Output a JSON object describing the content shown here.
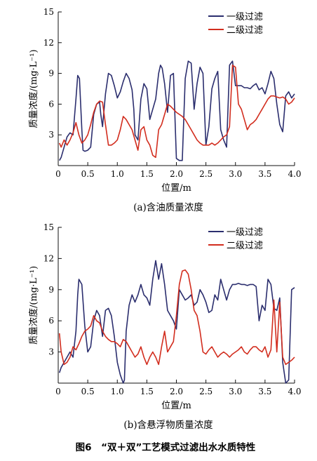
{
  "colors": {
    "series1": "#2b2e6e",
    "series2": "#d22d1e",
    "axis": "#111111"
  },
  "figure_caption": "图6　“双＋双”工艺模式过滤出水水质特性",
  "chart_data": [
    {
      "type": "line",
      "caption": "(a)含油质量浓度",
      "xlabel": "位置/m",
      "ylabel": "质量浓度/(mg·L⁻¹)",
      "xlim": [
        0,
        4.0
      ],
      "ylim": [
        0,
        15
      ],
      "xticks": [
        "0",
        "0.5",
        "1.0",
        "1.5",
        "2.0",
        "2.5",
        "3.0",
        "3.5",
        "4.0"
      ],
      "yticks": [
        "3",
        "6",
        "9",
        "12",
        "15"
      ],
      "legend_position": "top-right",
      "series": [
        {
          "name": "一级过滤",
          "x": [
            0.02,
            0.05,
            0.1,
            0.15,
            0.2,
            0.25,
            0.3,
            0.33,
            0.36,
            0.4,
            0.42,
            0.45,
            0.5,
            0.55,
            0.6,
            0.65,
            0.7,
            0.72,
            0.75,
            0.8,
            0.85,
            0.9,
            0.95,
            1.0,
            1.05,
            1.1,
            1.15,
            1.2,
            1.25,
            1.28,
            1.3,
            1.35,
            1.4,
            1.45,
            1.5,
            1.55,
            1.6,
            1.65,
            1.7,
            1.73,
            1.76,
            1.8,
            1.85,
            1.9,
            1.95,
            2.0,
            2.05,
            2.1,
            2.15,
            2.2,
            2.25,
            2.3,
            2.35,
            2.4,
            2.45,
            2.5,
            2.55,
            2.6,
            2.65,
            2.7,
            2.75,
            2.8,
            2.85,
            2.9,
            2.95,
            3.0,
            3.05,
            3.1,
            3.15,
            3.2,
            3.25,
            3.3,
            3.35,
            3.4,
            3.45,
            3.5,
            3.55,
            3.6,
            3.65,
            3.7,
            3.75,
            3.8,
            3.85,
            3.9,
            3.95,
            4.0
          ],
          "values": [
            0.5,
            0.8,
            1.8,
            2.8,
            3.2,
            3.0,
            6.5,
            8.8,
            8.5,
            3.5,
            1.5,
            1.4,
            1.5,
            1.8,
            5.0,
            6.0,
            6.2,
            5.0,
            3.8,
            7.0,
            9.0,
            8.8,
            7.8,
            6.6,
            7.2,
            8.2,
            9.0,
            8.5,
            7.4,
            5.5,
            3.0,
            2.5,
            6.5,
            8.0,
            7.5,
            4.5,
            5.5,
            6.5,
            9.0,
            9.8,
            9.5,
            8.0,
            5.2,
            8.8,
            9.0,
            0.7,
            0.5,
            0.5,
            8.5,
            10.2,
            10.0,
            5.5,
            8.0,
            9.6,
            9.0,
            2.0,
            3.8,
            7.5,
            8.5,
            9.2,
            3.5,
            2.5,
            1.8,
            9.8,
            10.2,
            7.8,
            7.8,
            7.8,
            7.6,
            7.6,
            7.5,
            7.8,
            8.0,
            7.4,
            7.6,
            7.0,
            8.0,
            9.2,
            8.5,
            6.0,
            4.0,
            3.3,
            6.8,
            7.2,
            6.6,
            7.0
          ]
        },
        {
          "name": "二级过滤",
          "x": [
            0.02,
            0.05,
            0.1,
            0.15,
            0.2,
            0.25,
            0.3,
            0.35,
            0.4,
            0.45,
            0.5,
            0.55,
            0.6,
            0.65,
            0.7,
            0.75,
            0.8,
            0.85,
            0.9,
            0.95,
            1.0,
            1.05,
            1.1,
            1.15,
            1.2,
            1.25,
            1.3,
            1.35,
            1.4,
            1.45,
            1.5,
            1.55,
            1.6,
            1.65,
            1.7,
            1.75,
            1.8,
            1.85,
            1.9,
            1.95,
            2.0,
            2.05,
            2.1,
            2.15,
            2.2,
            2.25,
            2.3,
            2.35,
            2.4,
            2.45,
            2.5,
            2.55,
            2.6,
            2.65,
            2.7,
            2.75,
            2.8,
            2.85,
            2.9,
            2.95,
            3.0,
            3.05,
            3.1,
            3.15,
            3.2,
            3.25,
            3.3,
            3.35,
            3.4,
            3.45,
            3.5,
            3.55,
            3.6,
            3.65,
            3.7,
            3.75,
            3.8,
            3.85,
            3.9,
            3.95,
            4.0
          ],
          "values": [
            2.2,
            1.8,
            2.5,
            2.0,
            2.5,
            3.2,
            4.2,
            3.0,
            2.2,
            2.5,
            3.0,
            4.0,
            5.2,
            6.0,
            6.3,
            6.2,
            4.0,
            2.0,
            2.0,
            2.2,
            2.5,
            3.5,
            4.8,
            4.5,
            4.0,
            3.5,
            2.5,
            1.5,
            3.5,
            3.8,
            2.5,
            2.0,
            1.0,
            0.8,
            3.5,
            4.0,
            5.0,
            6.0,
            5.8,
            5.5,
            5.2,
            5.0,
            4.8,
            4.5,
            4.0,
            3.5,
            3.0,
            2.5,
            2.2,
            2.0,
            2.0,
            2.0,
            2.2,
            2.0,
            2.2,
            2.5,
            2.8,
            3.0,
            3.8,
            9.8,
            9.6,
            6.0,
            5.5,
            4.5,
            3.5,
            4.0,
            4.2,
            4.5,
            5.0,
            5.5,
            6.0,
            6.5,
            6.8,
            6.8,
            6.7,
            6.6,
            6.7,
            6.5,
            6.0,
            6.2,
            6.6
          ]
        }
      ]
    },
    {
      "type": "line",
      "caption": "(b)含悬浮物质量浓度",
      "xlabel": "位置/m",
      "ylabel": "质量浓度/(mg·L⁻¹)",
      "xlim": [
        0,
        4.0
      ],
      "ylim": [
        0,
        15
      ],
      "xticks": [
        "0",
        "0.5",
        "1.0",
        "1.5",
        "2.0",
        "2.5",
        "3.0",
        "3.5",
        "4.0"
      ],
      "yticks": [
        "3",
        "6",
        "9",
        "12",
        "15"
      ],
      "legend_position": "top-right",
      "series": [
        {
          "name": "一级过滤",
          "x": [
            0.02,
            0.05,
            0.1,
            0.15,
            0.2,
            0.25,
            0.3,
            0.33,
            0.35,
            0.4,
            0.45,
            0.5,
            0.55,
            0.6,
            0.65,
            0.7,
            0.75,
            0.8,
            0.85,
            0.9,
            0.95,
            1.0,
            1.05,
            1.1,
            1.12,
            1.15,
            1.2,
            1.25,
            1.3,
            1.35,
            1.4,
            1.45,
            1.5,
            1.55,
            1.6,
            1.65,
            1.7,
            1.75,
            1.8,
            1.85,
            1.9,
            1.95,
            2.0,
            2.05,
            2.1,
            2.15,
            2.2,
            2.25,
            2.3,
            2.35,
            2.4,
            2.45,
            2.5,
            2.55,
            2.6,
            2.65,
            2.7,
            2.75,
            2.8,
            2.85,
            2.9,
            2.95,
            3.0,
            3.05,
            3.1,
            3.15,
            3.2,
            3.25,
            3.3,
            3.35,
            3.4,
            3.45,
            3.5,
            3.55,
            3.6,
            3.65,
            3.7,
            3.75,
            3.8,
            3.85,
            3.9,
            3.95,
            4.0
          ],
          "values": [
            1.0,
            1.5,
            2.0,
            2.5,
            3.0,
            2.5,
            5.0,
            8.5,
            10.0,
            9.5,
            5.5,
            3.0,
            3.5,
            6.0,
            7.0,
            6.5,
            4.5,
            7.0,
            7.2,
            6.5,
            4.5,
            2.0,
            0.8,
            0.0,
            0.3,
            5.0,
            7.5,
            8.5,
            7.8,
            8.5,
            9.5,
            8.5,
            8.2,
            7.5,
            10.0,
            11.8,
            10.0,
            11.5,
            9.5,
            7.0,
            6.5,
            6.0,
            5.2,
            9.0,
            8.5,
            8.0,
            8.2,
            8.5,
            7.5,
            7.8,
            9.0,
            8.5,
            7.8,
            6.8,
            7.0,
            8.5,
            8.0,
            10.0,
            9.0,
            8.0,
            9.0,
            9.5,
            9.5,
            9.6,
            9.5,
            9.5,
            9.4,
            9.5,
            9.5,
            9.3,
            6.0,
            7.5,
            7.0,
            10.0,
            9.5,
            7.2,
            7.0,
            8.2,
            2.0,
            0.0,
            0.3,
            9.0,
            9.2
          ]
        },
        {
          "name": "二级过滤",
          "x": [
            0.02,
            0.05,
            0.1,
            0.15,
            0.2,
            0.25,
            0.3,
            0.35,
            0.4,
            0.45,
            0.5,
            0.55,
            0.6,
            0.65,
            0.7,
            0.75,
            0.8,
            0.85,
            0.9,
            0.95,
            1.0,
            1.05,
            1.1,
            1.15,
            1.2,
            1.25,
            1.3,
            1.35,
            1.4,
            1.45,
            1.5,
            1.55,
            1.6,
            1.65,
            1.7,
            1.75,
            1.8,
            1.85,
            1.9,
            1.95,
            2.0,
            2.05,
            2.1,
            2.15,
            2.2,
            2.25,
            2.3,
            2.35,
            2.4,
            2.45,
            2.5,
            2.55,
            2.6,
            2.65,
            2.7,
            2.75,
            2.8,
            2.85,
            2.9,
            2.95,
            3.0,
            3.05,
            3.1,
            3.15,
            3.2,
            3.25,
            3.3,
            3.35,
            3.4,
            3.45,
            3.5,
            3.55,
            3.6,
            3.65,
            3.7,
            3.75,
            3.8,
            3.85,
            3.9,
            3.95,
            4.0
          ],
          "values": [
            4.8,
            3.0,
            1.8,
            2.0,
            2.5,
            3.5,
            3.2,
            3.8,
            4.5,
            5.0,
            5.2,
            5.5,
            6.5,
            6.0,
            5.8,
            5.0,
            4.5,
            4.2,
            4.0,
            4.0,
            3.8,
            3.5,
            4.2,
            4.0,
            3.5,
            3.0,
            2.5,
            2.8,
            3.5,
            2.5,
            1.8,
            2.5,
            3.0,
            2.5,
            1.8,
            3.5,
            5.0,
            3.0,
            3.5,
            4.0,
            6.5,
            9.5,
            10.8,
            10.9,
            10.5,
            9.0,
            7.0,
            6.5,
            5.0,
            3.0,
            2.8,
            3.2,
            3.5,
            3.0,
            2.5,
            2.8,
            3.0,
            2.8,
            2.5,
            2.8,
            3.0,
            3.2,
            3.5,
            3.0,
            2.8,
            3.2,
            3.5,
            3.5,
            3.2,
            3.0,
            3.5,
            2.5,
            3.2,
            8.0,
            3.0,
            7.8,
            2.5,
            1.8,
            2.0,
            2.2,
            2.5
          ]
        }
      ]
    }
  ]
}
